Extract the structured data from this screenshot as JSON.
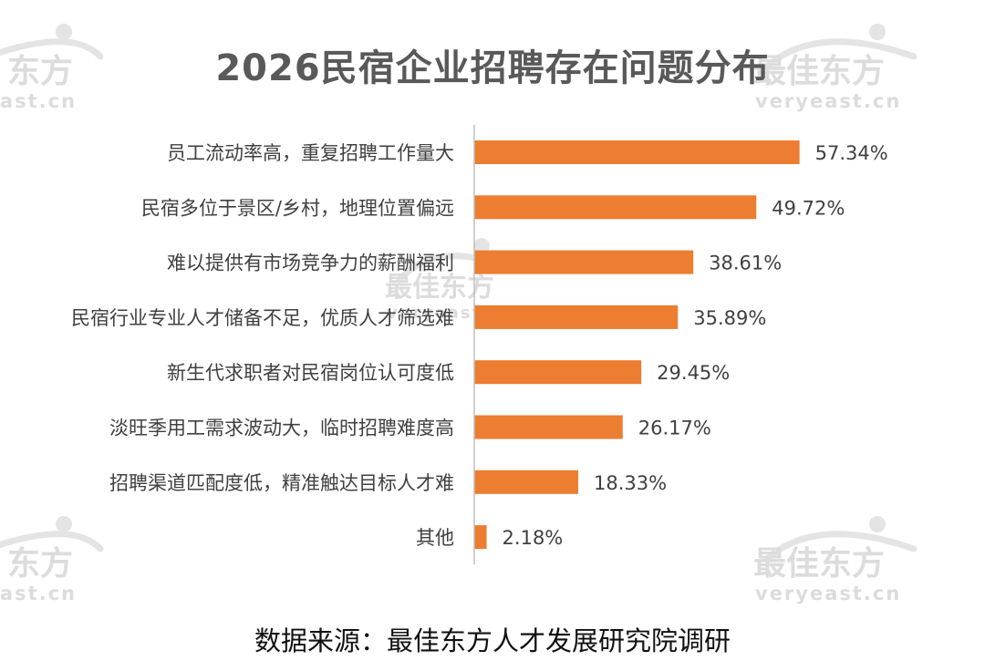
{
  "watermark": {
    "brand": "最佳东方",
    "brand_partial": "东方",
    "url": "veryeast.cn",
    "url_partial": "ast.cn"
  },
  "colors": {
    "bar": "#ED7D31",
    "label": "#404040",
    "title": "#595959",
    "axis": "#bfbfbf"
  },
  "source_note": "数据来源：最佳东方人才发展研究院调研",
  "chart_data": {
    "type": "bar",
    "orientation": "horizontal",
    "title": "2026民宿企业招聘存在问题分布",
    "xlim": [
      0,
      70
    ],
    "grid": false,
    "value_suffix": "%",
    "categories": [
      "员工流动率高，重复招聘工作量大",
      "民宿多位于景区/乡村，地理位置偏远",
      "难以提供有市场竞争力的薪酬福利",
      "民宿行业专业人才储备不足，优质人才筛选难",
      "新生代求职者对民宿岗位认可度低",
      "淡旺季用工需求波动大，临时招聘难度高",
      "招聘渠道匹配度低，精准触达目标人才难",
      "其他"
    ],
    "values": [
      57.34,
      49.72,
      38.61,
      35.89,
      29.45,
      26.17,
      18.33,
      2.18
    ],
    "value_labels": [
      "57.34%",
      "49.72%",
      "38.61%",
      "35.89%",
      "29.45%",
      "26.17%",
      "18.33%",
      "2.18%"
    ]
  }
}
